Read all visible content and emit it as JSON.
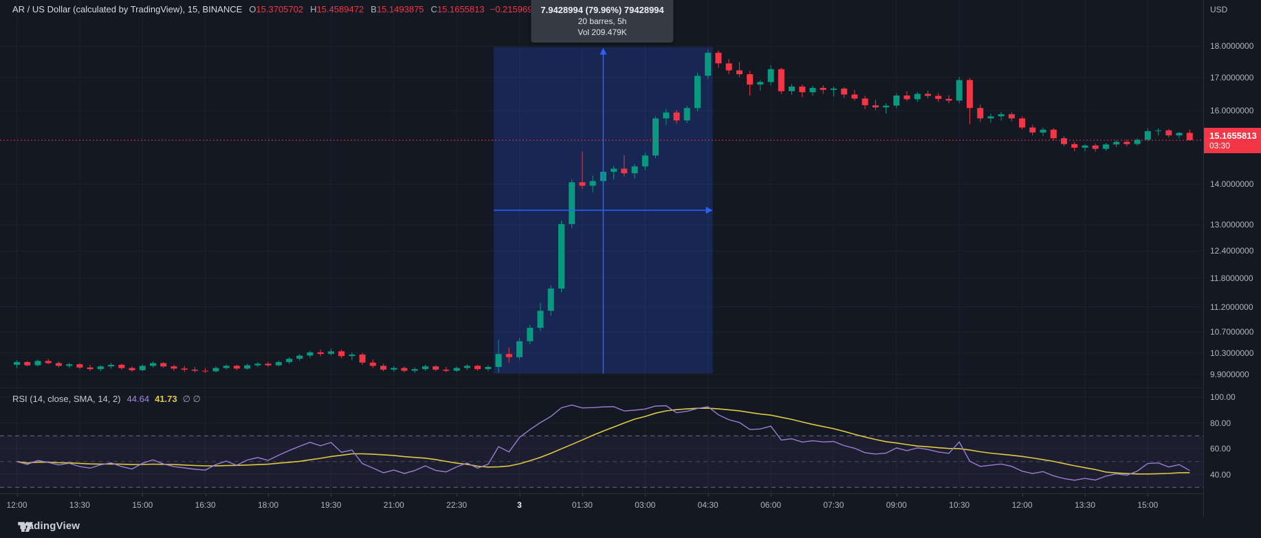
{
  "header": {
    "symbol": "AR / US Dollar (calculated by TradingView), 15, BINANCE",
    "ohlc": [
      {
        "label": "O",
        "value": "15.3705702"
      },
      {
        "label": "H",
        "value": "15.4589472"
      },
      {
        "label": "B",
        "value": "15.1493875"
      },
      {
        "label": "C",
        "value": "15.1655813"
      }
    ],
    "change": "−0.2159693 (−1.40%)"
  },
  "tooltip": {
    "line1": "7.9428994 (79.96%) 79428994",
    "line2": "20 barres, 5h",
    "line3": "Vol 209.479K"
  },
  "price_axis": {
    "currency": "USD",
    "values": [
      18,
      17,
      16,
      14,
      13,
      12.4,
      11.8,
      11.2,
      10.7,
      10.3,
      9.9
    ]
  },
  "price_label": {
    "price": "15.1655813",
    "countdown": "03:30"
  },
  "rsi_pane": {
    "title": "RSI (14, close, SMA, 14, 2)",
    "value": "44.64",
    "ma_value": "41.73",
    "extra": "∅ ∅",
    "axis_values": [
      100,
      80,
      60,
      40
    ]
  },
  "time_axis": {
    "labels": [
      "12:00",
      "13:30",
      "15:00",
      "16:30",
      "18:00",
      "19:30",
      "21:00",
      "22:30",
      "3",
      "01:30",
      "03:00",
      "04:30",
      "06:00",
      "07:30",
      "09:00",
      "10:30",
      "12:00",
      "13:30",
      "15:00"
    ],
    "day_label_index": 8
  },
  "logo": {
    "text": "TradingView"
  },
  "colors": {
    "background": "#141823",
    "up": "#089981",
    "down": "#f23645",
    "measure_blue": "#2962ff",
    "rsi_line": "#9b7fd4",
    "rsi_ma": "#e0ca43",
    "axis_text": "#b2b5be",
    "grid": "#ffffff"
  },
  "chart_data": {
    "type": "candlestick",
    "symbol": "AR/USD",
    "interval_min": 15,
    "start_time": "12:00",
    "price_scale": "log",
    "ylim": [
      9.6,
      18.3
    ],
    "current_price": 15.1655813,
    "candles": [
      [
        10.08,
        10.16,
        10.02,
        10.13
      ],
      [
        10.13,
        10.15,
        10.05,
        10.07
      ],
      [
        10.07,
        10.18,
        10.05,
        10.15
      ],
      [
        10.15,
        10.19,
        10.09,
        10.11
      ],
      [
        10.11,
        10.14,
        10.03,
        10.06
      ],
      [
        10.06,
        10.12,
        10.02,
        10.09
      ],
      [
        10.09,
        10.11,
        10.0,
        10.03
      ],
      [
        10.03,
        10.08,
        9.97,
        10.0
      ],
      [
        10.0,
        10.07,
        9.96,
        10.05
      ],
      [
        10.05,
        10.12,
        10.01,
        10.08
      ],
      [
        10.08,
        10.1,
        9.99,
        10.02
      ],
      [
        10.02,
        10.05,
        9.95,
        9.98
      ],
      [
        9.98,
        10.09,
        9.96,
        10.06
      ],
      [
        10.06,
        10.14,
        10.03,
        10.11
      ],
      [
        10.11,
        10.13,
        10.02,
        10.05
      ],
      [
        10.05,
        10.08,
        9.97,
        10.01
      ],
      [
        10.01,
        10.06,
        9.95,
        9.99
      ],
      [
        9.99,
        10.04,
        9.94,
        9.97
      ],
      [
        9.97,
        10.02,
        9.93,
        9.96
      ],
      [
        9.96,
        10.05,
        9.94,
        10.02
      ],
      [
        10.02,
        10.09,
        9.99,
        10.06
      ],
      [
        10.06,
        10.08,
        9.98,
        10.01
      ],
      [
        10.01,
        10.1,
        9.99,
        10.07
      ],
      [
        10.07,
        10.13,
        10.04,
        10.1
      ],
      [
        10.1,
        10.14,
        10.04,
        10.07
      ],
      [
        10.07,
        10.16,
        10.05,
        10.13
      ],
      [
        10.13,
        10.22,
        10.1,
        10.19
      ],
      [
        10.19,
        10.28,
        10.15,
        10.25
      ],
      [
        10.25,
        10.34,
        10.21,
        10.31
      ],
      [
        10.31,
        10.36,
        10.24,
        10.28
      ],
      [
        10.28,
        10.38,
        10.25,
        10.33
      ],
      [
        10.33,
        10.36,
        10.2,
        10.24
      ],
      [
        10.24,
        10.31,
        10.16,
        10.27
      ],
      [
        10.27,
        10.3,
        10.08,
        10.12
      ],
      [
        10.12,
        10.18,
        10.02,
        10.06
      ],
      [
        10.06,
        10.1,
        9.96,
        9.99
      ],
      [
        9.99,
        10.06,
        9.95,
        10.02
      ],
      [
        10.02,
        10.05,
        9.94,
        9.97
      ],
      [
        9.97,
        10.03,
        9.93,
        10.0
      ],
      [
        10.0,
        10.08,
        9.97,
        10.05
      ],
      [
        10.05,
        10.07,
        9.96,
        9.99
      ],
      [
        9.99,
        10.04,
        9.94,
        9.97
      ],
      [
        9.97,
        10.05,
        9.95,
        10.02
      ],
      [
        10.02,
        10.09,
        9.98,
        10.06
      ],
      [
        10.06,
        10.08,
        9.97,
        10.0
      ],
      [
        10.0,
        10.07,
        9.96,
        10.04
      ],
      [
        10.04,
        10.55,
        9.9335,
        10.28
      ],
      [
        10.28,
        10.4,
        10.12,
        10.22
      ],
      [
        10.22,
        10.58,
        10.18,
        10.52
      ],
      [
        10.52,
        10.84,
        10.46,
        10.78
      ],
      [
        10.78,
        11.28,
        10.72,
        11.12
      ],
      [
        11.12,
        11.65,
        11.02,
        11.58
      ],
      [
        11.58,
        13.1,
        11.5,
        13.02
      ],
      [
        13.02,
        14.12,
        12.92,
        14.05
      ],
      [
        14.05,
        14.86,
        13.88,
        13.96
      ],
      [
        13.96,
        14.22,
        13.8,
        14.08
      ],
      [
        14.08,
        14.8,
        13.98,
        14.32
      ],
      [
        14.32,
        14.48,
        14.12,
        14.4
      ],
      [
        14.4,
        14.76,
        14.2,
        14.28
      ],
      [
        14.28,
        14.52,
        14.15,
        14.46
      ],
      [
        14.46,
        14.82,
        14.36,
        14.75
      ],
      [
        14.75,
        15.85,
        14.68,
        15.78
      ],
      [
        15.78,
        16.05,
        15.6,
        15.95
      ],
      [
        15.95,
        16.02,
        15.62,
        15.72
      ],
      [
        15.72,
        16.15,
        15.65,
        16.08
      ],
      [
        16.08,
        17.15,
        15.98,
        17.05
      ],
      [
        17.05,
        17.876,
        16.95,
        17.78
      ],
      [
        17.78,
        17.86,
        17.3,
        17.44
      ],
      [
        17.44,
        17.58,
        17.1,
        17.22
      ],
      [
        17.22,
        17.48,
        17.02,
        17.1
      ],
      [
        17.1,
        17.2,
        16.45,
        16.78
      ],
      [
        16.78,
        16.92,
        16.6,
        16.86
      ],
      [
        16.86,
        17.38,
        16.76,
        17.26
      ],
      [
        17.26,
        17.3,
        16.5,
        16.58
      ],
      [
        16.58,
        16.8,
        16.48,
        16.72
      ],
      [
        16.72,
        16.78,
        16.4,
        16.55
      ],
      [
        16.55,
        16.74,
        16.45,
        16.68
      ],
      [
        16.68,
        16.76,
        16.5,
        16.62
      ],
      [
        16.62,
        16.72,
        16.42,
        16.66
      ],
      [
        16.66,
        16.7,
        16.38,
        16.48
      ],
      [
        16.48,
        16.62,
        16.3,
        16.36
      ],
      [
        16.36,
        16.44,
        16.05,
        16.16
      ],
      [
        16.16,
        16.32,
        16.02,
        16.1
      ],
      [
        16.1,
        16.22,
        15.92,
        16.15
      ],
      [
        16.15,
        16.52,
        16.08,
        16.45
      ],
      [
        16.45,
        16.58,
        16.28,
        16.34
      ],
      [
        16.34,
        16.56,
        16.26,
        16.5
      ],
      [
        16.5,
        16.6,
        16.36,
        16.44
      ],
      [
        16.44,
        16.52,
        16.26,
        16.35
      ],
      [
        16.35,
        16.46,
        16.22,
        16.3
      ],
      [
        16.3,
        17.02,
        16.22,
        16.92
      ],
      [
        16.92,
        16.98,
        15.62,
        16.08
      ],
      [
        16.08,
        16.18,
        15.68,
        15.78
      ],
      [
        15.78,
        15.92,
        15.66,
        15.84
      ],
      [
        15.84,
        15.96,
        15.72,
        15.9
      ],
      [
        15.9,
        15.95,
        15.7,
        15.78
      ],
      [
        15.78,
        15.84,
        15.46,
        15.52
      ],
      [
        15.52,
        15.6,
        15.3,
        15.38
      ],
      [
        15.38,
        15.52,
        15.28,
        15.46
      ],
      [
        15.46,
        15.5,
        15.16,
        15.22
      ],
      [
        15.22,
        15.28,
        15.0,
        15.06
      ],
      [
        15.06,
        15.12,
        14.87,
        14.96
      ],
      [
        14.96,
        15.06,
        14.86,
        15.02
      ],
      [
        15.02,
        15.07,
        14.85,
        14.93
      ],
      [
        14.93,
        15.09,
        14.88,
        15.05
      ],
      [
        15.05,
        15.17,
        14.98,
        15.12
      ],
      [
        15.12,
        15.18,
        15.0,
        15.06
      ],
      [
        15.06,
        15.22,
        15.02,
        15.18
      ],
      [
        15.18,
        15.5,
        15.14,
        15.42
      ],
      [
        15.42,
        15.5,
        15.3,
        15.44
      ],
      [
        15.44,
        15.48,
        15.24,
        15.3
      ],
      [
        15.3,
        15.4,
        15.22,
        15.37
      ],
      [
        15.3705702,
        15.4589472,
        15.1493875,
        15.1655813
      ]
    ],
    "measure": {
      "start_bar": 46,
      "end_bar": 66,
      "price_low": 9.9335,
      "price_high": 17.876,
      "change": "7.9428994",
      "change_pct": "79.96%",
      "bars": 20,
      "duration": "5h",
      "volume": "209.479K"
    },
    "indicator": {
      "name": "RSI",
      "length": 14,
      "source": "close",
      "smoothing": "SMA",
      "smoothing_length": 14,
      "last": 44.64,
      "ma_last": 41.73,
      "overbought": 70,
      "middle": 50,
      "oversold": 30
    }
  }
}
